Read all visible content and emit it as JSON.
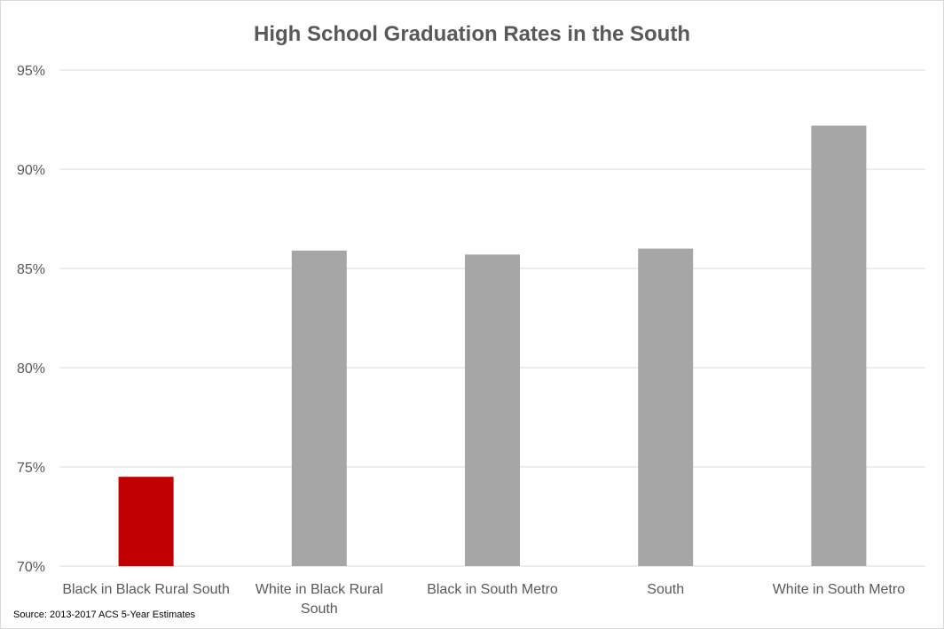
{
  "chart_data": {
    "type": "bar",
    "title": "High School Graduation Rates in the South",
    "categories": [
      [
        "Black in Black Rural South"
      ],
      [
        "White in Black Rural",
        "South"
      ],
      [
        "Black in South Metro"
      ],
      [
        "South"
      ],
      [
        "White in South Metro"
      ]
    ],
    "values": [
      74.5,
      85.9,
      85.7,
      86.0,
      92.2
    ],
    "ylim": [
      70,
      95
    ],
    "yticks": [
      70,
      75,
      80,
      85,
      90,
      95
    ],
    "ytick_labels": [
      "70%",
      "75%",
      "80%",
      "85%",
      "90%",
      "95%"
    ],
    "grid": true,
    "colors": {
      "highlight": "#c00000",
      "default": "#a6a6a6",
      "grid": "#d9d9d9",
      "text": "#595959"
    },
    "highlight_index": 0,
    "source": "Source: 2013-2017 ACS 5-Year Estimates"
  }
}
